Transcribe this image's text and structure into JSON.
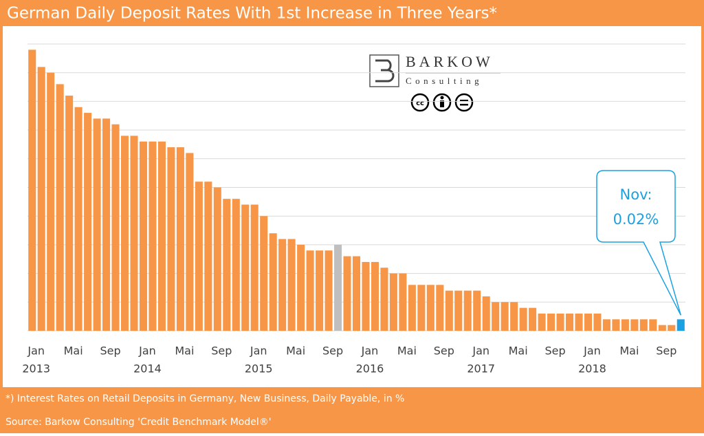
{
  "chart_data": {
    "type": "bar",
    "title": "German Daily Deposit Rates With 1st Increase in Three Years*",
    "footnote": "*) Interest Rates on Retail Deposits in Germany, New Business, Daily Payable, in %",
    "source": "Source: Barkow Consulting 'Credit Benchmark Model®'",
    "logo": {
      "name": "BARKOW",
      "sub": "Consulting"
    },
    "annotation": "Nov:",
    "categories": [
      "Jan",
      null,
      null,
      null,
      "Mai",
      null,
      null,
      null,
      "Sep",
      null,
      null,
      null,
      "Jan",
      null,
      null,
      null,
      "Mai",
      null,
      null,
      null,
      "Sep",
      null,
      null,
      null,
      "Jan",
      null,
      null,
      null,
      "Mai",
      null,
      null,
      null,
      "Sep",
      null,
      null,
      null,
      "Jan",
      null,
      null,
      null,
      "Mai",
      null,
      null,
      null,
      "Sep",
      null,
      null,
      null,
      "Jan",
      null,
      null,
      null,
      "Mai",
      null,
      null,
      null,
      "Sep",
      null,
      null,
      null,
      "Jan",
      null,
      null,
      null,
      "Mai",
      null,
      null,
      null,
      "Sep",
      null,
      null
    ],
    "years": [
      "2013",
      null,
      null,
      null,
      null,
      null,
      null,
      null,
      null,
      null,
      null,
      null,
      "2014",
      null,
      null,
      null,
      null,
      null,
      null,
      null,
      null,
      null,
      null,
      null,
      "2015",
      null,
      null,
      null,
      null,
      null,
      null,
      null,
      null,
      null,
      null,
      null,
      "2016",
      null,
      null,
      null,
      null,
      null,
      null,
      null,
      null,
      null,
      null,
      null,
      "2017",
      null,
      null,
      null,
      null,
      null,
      null,
      null,
      null,
      null,
      null,
      null,
      "2018",
      null,
      null,
      null,
      null,
      null,
      null,
      null,
      null,
      null,
      null
    ],
    "values": [
      0.49,
      0.46,
      0.45,
      0.43,
      0.41,
      0.39,
      0.38,
      0.37,
      0.37,
      0.36,
      0.34,
      0.34,
      0.33,
      0.33,
      0.33,
      0.32,
      0.32,
      0.31,
      0.26,
      0.26,
      0.25,
      0.23,
      0.23,
      0.22,
      0.22,
      0.2,
      0.17,
      0.16,
      0.16,
      0.15,
      0.14,
      0.14,
      0.14,
      0.15,
      0.13,
      0.13,
      0.12,
      0.12,
      0.11,
      0.1,
      0.1,
      0.08,
      0.08,
      0.08,
      0.08,
      0.07,
      0.07,
      0.07,
      0.07,
      0.06,
      0.05,
      0.05,
      0.05,
      0.04,
      0.04,
      0.03,
      0.03,
      0.03,
      0.03,
      0.03,
      0.03,
      0.03,
      0.02,
      0.02,
      0.02,
      0.02,
      0.02,
      0.02,
      0.01,
      0.01,
      0.02
    ],
    "value_labels": [
      null,
      null,
      null,
      null,
      null,
      null,
      null,
      null,
      null,
      null,
      null,
      null,
      null,
      null,
      null,
      null,
      null,
      null,
      null,
      null,
      null,
      null,
      null,
      null,
      null,
      null,
      null,
      null,
      null,
      null,
      null,
      null,
      null,
      null,
      null,
      null,
      null,
      null,
      null,
      null,
      null,
      null,
      null,
      null,
      null,
      null,
      null,
      null,
      null,
      null,
      null,
      null,
      null,
      null,
      null,
      null,
      null,
      null,
      null,
      null,
      null,
      null,
      null,
      null,
      null,
      null,
      null,
      null,
      null,
      null,
      "0.02%"
    ],
    "color": "#f79646",
    "highlights": [
      {
        "index": 33,
        "color": "#bfbfbf"
      },
      {
        "index": 70,
        "color": "#1ba1e2"
      }
    ],
    "ylim": [
      0,
      0.5
    ],
    "yticks": [
      0,
      0.05,
      0.1,
      0.15,
      0.2,
      0.25,
      0.3,
      0.35,
      0.4,
      0.45,
      0.5
    ],
    "grid": true
  }
}
